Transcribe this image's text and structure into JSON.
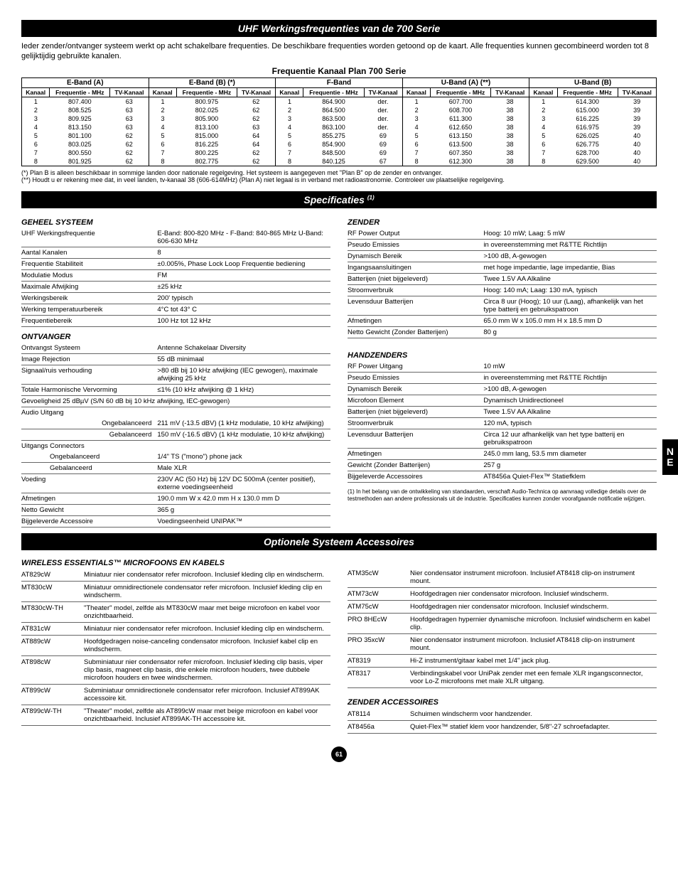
{
  "titles": {
    "main": "UHF Werkingsfrequenties van de 700 Serie",
    "freqPlan": "Frequentie Kanaal Plan 700 Serie",
    "specs": "Specificaties",
    "specsSup": "(1)",
    "accessories": "Optionele Systeem Accessoires"
  },
  "intro": "Ieder zender/ontvanger systeem werkt op acht schakelbare frequenties. De beschikbare frequenties worden getoond op de kaart. Alle frequenties kunnen gecombineerd worden tot 8 gelijktijdig gebruikte kanalen.",
  "freq": {
    "bands": [
      "E-Band (A)",
      "E-Band (B) (*)",
      "F-Band",
      "U-Band (A) (**)",
      "U-Band (B)"
    ],
    "cols": [
      "Kanaal",
      "Frequentie - MHz",
      "TV-Kanaal"
    ],
    "rows": [
      [
        [
          "1",
          "807.400",
          "63"
        ],
        [
          "1",
          "800.975",
          "62"
        ],
        [
          "1",
          "864.900",
          "der."
        ],
        [
          "1",
          "607.700",
          "38"
        ],
        [
          "1",
          "614.300",
          "39"
        ]
      ],
      [
        [
          "2",
          "808.525",
          "63"
        ],
        [
          "2",
          "802.025",
          "62"
        ],
        [
          "2",
          "864.500",
          "der."
        ],
        [
          "2",
          "608.700",
          "38"
        ],
        [
          "2",
          "615.000",
          "39"
        ]
      ],
      [
        [
          "3",
          "809.925",
          "63"
        ],
        [
          "3",
          "805.900",
          "62"
        ],
        [
          "3",
          "863.500",
          "der."
        ],
        [
          "3",
          "611.300",
          "38"
        ],
        [
          "3",
          "616.225",
          "39"
        ]
      ],
      [
        [
          "4",
          "813.150",
          "63"
        ],
        [
          "4",
          "813.100",
          "63"
        ],
        [
          "4",
          "863.100",
          "der."
        ],
        [
          "4",
          "612.650",
          "38"
        ],
        [
          "4",
          "616.975",
          "39"
        ]
      ],
      [
        [
          "5",
          "801.100",
          "62"
        ],
        [
          "5",
          "815.000",
          "64"
        ],
        [
          "5",
          "855.275",
          "69"
        ],
        [
          "5",
          "613.150",
          "38"
        ],
        [
          "5",
          "626.025",
          "40"
        ]
      ],
      [
        [
          "6",
          "803.025",
          "62"
        ],
        [
          "6",
          "816.225",
          "64"
        ],
        [
          "6",
          "854.900",
          "69"
        ],
        [
          "6",
          "613.500",
          "38"
        ],
        [
          "6",
          "626.775",
          "40"
        ]
      ],
      [
        [
          "7",
          "800.550",
          "62"
        ],
        [
          "7",
          "800.225",
          "62"
        ],
        [
          "7",
          "848.500",
          "69"
        ],
        [
          "7",
          "607.350",
          "38"
        ],
        [
          "7",
          "628.700",
          "40"
        ]
      ],
      [
        [
          "8",
          "801.925",
          "62"
        ],
        [
          "8",
          "802.775",
          "62"
        ],
        [
          "8",
          "840.125",
          "67"
        ],
        [
          "8",
          "612.300",
          "38"
        ],
        [
          "8",
          "629.500",
          "40"
        ]
      ]
    ]
  },
  "footnotes": {
    "a": "(*) Plan B is alleen beschikbaar in sommige landen door nationale regelgeving. Het systeem is aangegeven met \"Plan B\" op de zender en ontvanger.",
    "b": "(**) Houdt u er rekening mee dat, in veel landen, tv-kanaal 38 (606-614MHz) (Plan A) niet legaal is in verband met radioastronomie. Controleer uw plaatselijke regelgeving."
  },
  "specs": {
    "system": {
      "title": "GEHEEL SYSTEEM",
      "rows": [
        [
          "UHF Werkingsfrequentie",
          "E-Band: 800-820 MHz - F-Band: 840-865 MHz U-Band: 606-630 MHz"
        ],
        [
          "Aantal Kanalen",
          "8"
        ],
        [
          "Frequentie Stabiliteit",
          "±0.005%, Phase Lock Loop Frequentie bediening"
        ],
        [
          "Modulatie Modus",
          "FM"
        ],
        [
          "Maximale Afwijking",
          "±25 kHz"
        ],
        [
          "Werkingsbereik",
          "200' typisch"
        ],
        [
          "Werking temperatuurbereik",
          "4°C tot 43° C"
        ],
        [
          "Frequentiebereik",
          "100 Hz tot 12 kHz"
        ]
      ]
    },
    "receiver": {
      "title": "ONTVANGER",
      "rows": [
        [
          "Ontvangst Systeem",
          "Antenne Schakelaar Diversity"
        ],
        [
          "Image Rejection",
          "55 dB minimaal"
        ],
        [
          "Signaal/ruis verhouding",
          ">80 dB bij 10 kHz afwijking (IEC gewogen), maximale afwijking 25 kHz"
        ],
        [
          "Totale Harmonische Vervorming",
          "≤1% (10 kHz afwijking @ 1 kHz)"
        ],
        [
          "Gevoeligheid 25 dBµV (S/N 60 dB bij 10 kHz afwijking, IEC-gewogen)",
          ""
        ]
      ],
      "audio_label": "Audio Uitgang",
      "audio": [
        [
          "Ongebalanceerd",
          "211 mV (-13.5 dBV) (1 kHz modulatie, 10 kHz afwijking)"
        ],
        [
          "Gebalanceerd",
          "150 mV (-16.5 dBV) (1 kHz modulatie, 10 kHz afwijking)"
        ]
      ],
      "conn_label": "Uitgangs Connectors",
      "conn": [
        [
          "Ongebalanceerd",
          "1/4\" TS (\"mono\") phone jack"
        ],
        [
          "Gebalanceerd",
          "Male XLR"
        ]
      ],
      "rest": [
        [
          "Voeding",
          "230V AC (50 Hz) bij 12V DC 500mA (center positief), externe voedingseenheid"
        ],
        [
          "Afmetingen",
          "190.0 mm W x 42.0 mm H x 130.0 mm D"
        ],
        [
          "Netto Gewicht",
          "365 g"
        ],
        [
          "Bijgeleverde Accessoire",
          "Voedingseenheid UNIPAK™"
        ]
      ]
    },
    "transmitter": {
      "title": "ZENDER",
      "rows": [
        [
          "RF Power Output",
          "Hoog: 10 mW; Laag: 5 mW"
        ],
        [
          "Pseudo Emissies",
          "in overeenstemming met R&TTE Richtlijn"
        ],
        [
          "Dynamisch Bereik",
          ">100 dB, A-gewogen"
        ],
        [
          "Ingangsaansluitingen",
          "met hoge impedantie, lage impedantie, Bias"
        ],
        [
          "Batterijen (niet bijgeleverd)",
          "Twee 1.5V AA Alkaline"
        ],
        [
          "Stroomverbruik",
          "Hoog: 140 mA; Laag: 130 mA, typisch"
        ],
        [
          "Levensduur Batterijen",
          "Circa 8 uur (Hoog); 10 uur (Laag), afhankelijk van het type batterij en gebruikspatroon"
        ],
        [
          "Afmetingen",
          "65.0 mm W x 105.0 mm H x 18.5 mm D"
        ],
        [
          "Netto Gewicht (Zonder Batterijen)",
          "80 g"
        ]
      ]
    },
    "handheld": {
      "title": "HANDZENDERS",
      "rows": [
        [
          "RF Power Uitgang",
          "10 mW"
        ],
        [
          "Pseudo Emissies",
          "in overeenstemming met R&TTE Richtlijn"
        ],
        [
          "Dynamisch Bereik",
          ">100 dB, A-gewogen"
        ],
        [
          "Microfoon Element",
          "Dynamisch Unidirectioneel"
        ],
        [
          "Batterijen (niet bijgeleverd)",
          "Twee 1.5V AA Alkaline"
        ],
        [
          "Stroomverbruik",
          "120 mA, typisch"
        ],
        [
          "Levensduur Batterijen",
          "Circa 12 uur afhankelijk van het type batterij en gebruikspatroon"
        ],
        [
          "Afmetingen",
          "245.0 mm lang, 53.5 mm diameter"
        ],
        [
          "Gewicht (Zonder Batterijen)",
          "257 g"
        ],
        [
          "Bijgeleverde Accessoires",
          "AT8456a Quiet-Flex™ Statiefklem"
        ]
      ]
    },
    "note": "(1) In het belang van de ontwikkeling van standaarden, verschaft Audio-Technica op aanvraag volledige details over de testmethoden aan andere professionals uit de industrie. Specificaties kunnen zonder voorafgaande notificatie wijzigen."
  },
  "accessories": {
    "micHeading": "WIRELESS ESSENTIALS™ MICROFOONS EN KABELS",
    "left": [
      [
        "AT829cW",
        "Miniatuur nier condensator refer microfoon. Inclusief kleding clip en windscherm."
      ],
      [
        "MT830cW",
        "Miniatuur omnidirectionele condensator refer microfoon. Inclusief kleding clip en windscherm."
      ],
      [
        "MT830cW-TH",
        "\"Theater\" model, zelfde als MT830cW maar met beige microfoon en kabel voor onzichtbaarheid."
      ],
      [
        "AT831cW",
        "Miniatuur nier condensator refer microfoon. Inclusief kleding clip en windscherm."
      ],
      [
        "AT889cW",
        "Hoofdgedragen noise-canceling condensator microfoon. Inclusief kabel clip en windscherm."
      ],
      [
        "AT898cW",
        "Subminiatuur nier condensator refer microfoon. Inclusief kleding clip basis, viper clip basis, magneet clip basis, drie enkele microfoon houders, twee dubbele microfoon houders en twee windschermen."
      ],
      [
        "AT899cW",
        "Subminiatuur omnidirectionele condensator refer microfoon. Inclusief AT899AK accessoire kit."
      ],
      [
        "AT899cW-TH",
        "\"Theater\" model, zelfde als AT899cW maar met beige microfoon en kabel voor onzichtbaarheid. Inclusief AT899AK-TH accessoire kit."
      ]
    ],
    "right": [
      [
        "ATM35cW",
        "Nier condensator instrument microfoon. Inclusief AT8418 clip-on instrument mount."
      ],
      [
        "ATM73cW",
        "Hoofdgedragen nier condensator microfoon. Inclusief windscherm."
      ],
      [
        "ATM75cW",
        "Hoofdgedragen nier condensator microfoon. Inclusief windscherm."
      ],
      [
        "PRO 8HEcW",
        "Hoofdgedragen hypernier dynamische microfoon. Inclusief windscherm en kabel clip."
      ],
      [
        "PRO 35xcW",
        "Nier condensator instrument microfoon. Inclusief AT8418 clip-on instrument mount."
      ],
      [
        "AT8319",
        "Hi-Z instrument/gitaar kabel met 1/4\" jack plug."
      ],
      [
        "AT8317",
        "Verbindingskabel voor UniPak zender met een female XLR ingangsconnector, voor Lo-Z microfoons met male XLR uitgang."
      ]
    ],
    "zenderHeading": "ZENDER ACCESSOIRES",
    "zender": [
      [
        "AT8114",
        "Schuimen windscherm voor handzender."
      ],
      [
        "AT8456a",
        "Quiet-Flex™ statief klem voor handzender, 5/8\"-27 schroefadapter."
      ]
    ]
  },
  "pageNumber": "61",
  "sideTab": "N E"
}
